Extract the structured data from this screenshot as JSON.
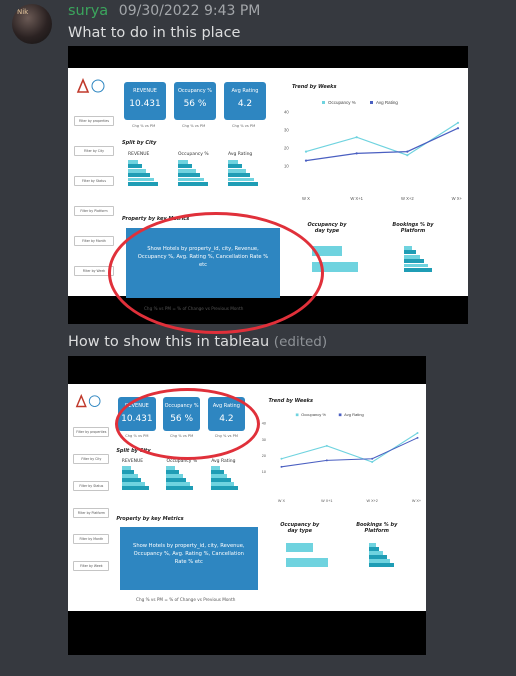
{
  "message": {
    "username": "surya",
    "timestamp": "09/30/2022 9:43 PM",
    "line1": "What to do in this place",
    "line2": "How to show  this in tableau",
    "edited": "(edited)"
  },
  "dashboard": {
    "kpis": [
      {
        "title": "REVENUE",
        "value": "10.431",
        "sub": "Chg % vs PM"
      },
      {
        "title": "Occupancy %",
        "value": "56 %",
        "sub": "Chg % vs PM"
      },
      {
        "title": "Avg Rating",
        "value": "4.2",
        "sub": "Chg % vs PM"
      }
    ],
    "filters": [
      "Filter by properties",
      "Filter by City",
      "Filter by Status",
      "Filter by Platform",
      "Filter by Month",
      "Filter by Week"
    ],
    "split_title": "Split by City",
    "split_cols": [
      "REVENUE",
      "Occupancy %",
      "Avg Rating"
    ],
    "metrics_title": "Property by key Metrics",
    "metrics_text": "Show Hotels by property_id, city, Revenue, Occupancy %, Avg. Rating %, Cancellation Rate % etc",
    "footnote": "Chg % vs PM = % of Change vs Previous Month",
    "occupancy_title": "Occupancy by day type",
    "bookings_title": "Bookings % by Platform",
    "trend_title": "Trend by Weeks",
    "legend": [
      "Occupancy %",
      "Avg Rating"
    ],
    "colors": {
      "occupancy": "#6fd3df",
      "rating": "#4a5fc1",
      "kpi": "#2e86c1",
      "annotation": "#e0303a"
    }
  },
  "chart_data": {
    "type": "line",
    "title": "Trend by Weeks",
    "categories": [
      "W X",
      "W X+1",
      "W X+2",
      "W X+3"
    ],
    "yticks": [
      10,
      20,
      30,
      40
    ],
    "ylim": [
      0,
      40
    ],
    "series": [
      {
        "name": "Occupancy %",
        "values": [
          18,
          26,
          16,
          34
        ]
      },
      {
        "name": "Avg Rating",
        "values": [
          13,
          17,
          18,
          31
        ]
      }
    ]
  }
}
